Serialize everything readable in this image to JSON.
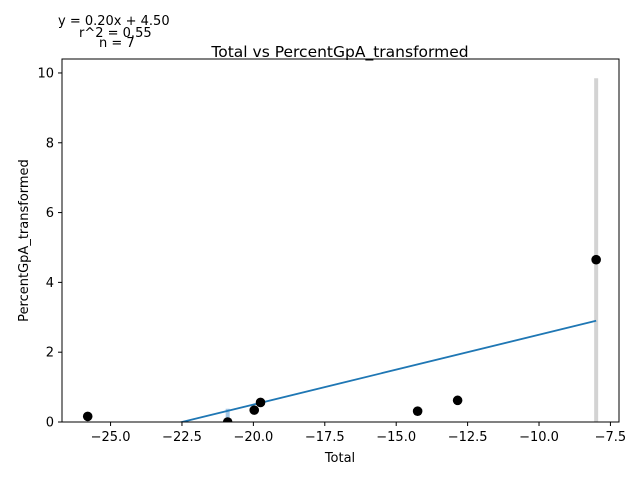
{
  "chart_data": {
    "type": "scatter",
    "title": "Total vs PercentGpA_transformed",
    "xlabel": "Total",
    "ylabel": "PercentGpA_transformed",
    "xlim": [
      -26.7,
      -7.2
    ],
    "ylim": [
      0,
      10.4
    ],
    "xticks": [
      -25.0,
      -22.5,
      -20.0,
      -17.5,
      -15.0,
      -12.5,
      -10.0,
      -7.5
    ],
    "xtick_labels": [
      "−25.0",
      "−22.5",
      "−20.0",
      "−17.5",
      "−15.0",
      "−12.5",
      "−10.0",
      "−7.5"
    ],
    "yticks": [
      0,
      2,
      4,
      6,
      8,
      10
    ],
    "ytick_labels": [
      "0",
      "2",
      "4",
      "6",
      "8",
      "10"
    ],
    "points": [
      {
        "x": -25.8,
        "y": 0.16
      },
      {
        "x": -20.9,
        "y": 0.0
      },
      {
        "x": -19.97,
        "y": 0.34
      },
      {
        "x": -19.75,
        "y": 0.56
      },
      {
        "x": -14.25,
        "y": 0.31
      },
      {
        "x": -12.85,
        "y": 0.62
      },
      {
        "x": -8.0,
        "y": 4.65
      }
    ],
    "error_bars": [
      {
        "x": -20.9,
        "low": 0.0,
        "high": 0.38,
        "color": "#a6c8e6"
      },
      {
        "x": -8.0,
        "low": 0.0,
        "high": 9.85,
        "color": "#d3d3d3"
      }
    ],
    "fit_line": {
      "slope": 0.2,
      "intercept": 4.5,
      "x_start": -26.7,
      "x_end": -8.0,
      "color": "#1f77b4"
    },
    "point_color": "#000000",
    "annotations": {
      "equation": "y = 0.20x + 4.50",
      "r2": "r^2 = 0.55",
      "n": "n = 7"
    },
    "grid": false
  }
}
